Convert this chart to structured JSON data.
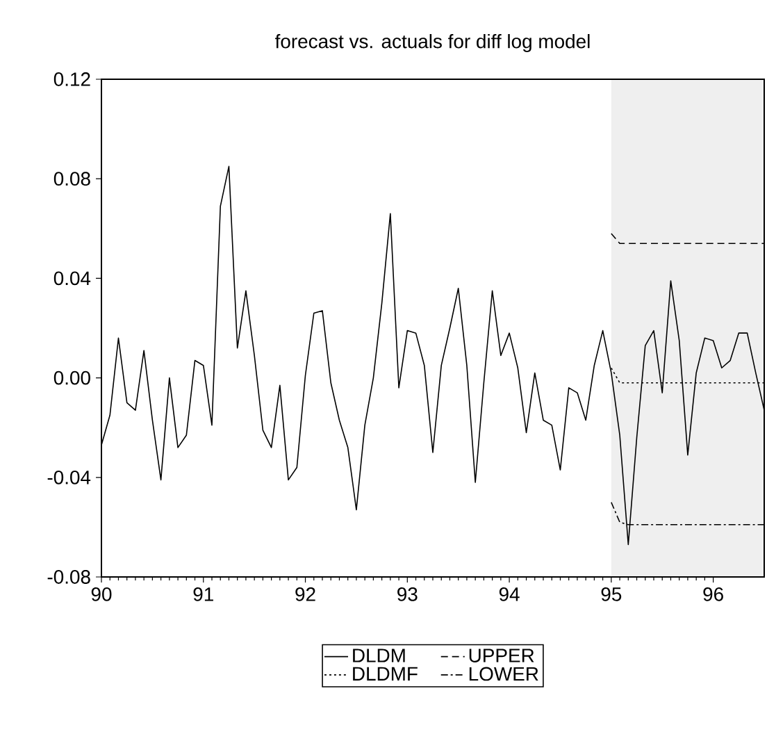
{
  "chart_data": {
    "type": "line",
    "title": "forecast vs. actuals for diff log model",
    "x": [
      90.0,
      90.0833,
      90.1667,
      90.25,
      90.3333,
      90.4167,
      90.5,
      90.5833,
      90.6667,
      90.75,
      90.8333,
      90.9167,
      91.0,
      91.0833,
      91.1667,
      91.25,
      91.3333,
      91.4167,
      91.5,
      91.5833,
      91.6667,
      91.75,
      91.8333,
      91.9167,
      92.0,
      92.0833,
      92.1667,
      92.25,
      92.3333,
      92.4167,
      92.5,
      92.5833,
      92.6667,
      92.75,
      92.8333,
      92.9167,
      93.0,
      93.0833,
      93.1667,
      93.25,
      93.3333,
      93.4167,
      93.5,
      93.5833,
      93.6667,
      93.75,
      93.8333,
      93.9167,
      94.0,
      94.0833,
      94.1667,
      94.25,
      94.3333,
      94.4167,
      94.5,
      94.5833,
      94.6667,
      94.75,
      94.8333,
      94.9167,
      95.0,
      95.0833,
      95.1667,
      95.25,
      95.3333,
      95.4167,
      95.5,
      95.5833,
      95.6667,
      95.75,
      95.8333,
      95.9167,
      96.0,
      96.0833,
      96.1667,
      96.25,
      96.3333,
      96.4167,
      96.5
    ],
    "series": [
      {
        "name": "DLDM",
        "color": "#000000",
        "line_style": "solid",
        "values": [
          -0.027,
          -0.015,
          0.016,
          -0.01,
          -0.013,
          0.011,
          -0.017,
          -0.041,
          0.0,
          -0.028,
          -0.023,
          0.007,
          0.005,
          -0.019,
          0.069,
          0.085,
          0.012,
          0.035,
          0.009,
          -0.021,
          -0.028,
          -0.003,
          -0.041,
          -0.036,
          0.001,
          0.026,
          0.027,
          -0.002,
          -0.017,
          -0.028,
          -0.053,
          -0.019,
          0.0,
          0.03,
          0.066,
          -0.004,
          0.019,
          0.018,
          0.005,
          -0.03,
          0.005,
          0.02,
          0.036,
          0.005,
          -0.042,
          -0.002,
          0.035,
          0.009,
          0.018,
          0.004,
          -0.022,
          0.002,
          -0.017,
          -0.019,
          -0.037,
          -0.004,
          -0.006,
          -0.017,
          0.005,
          0.019,
          0.002,
          -0.023,
          -0.067,
          -0.024,
          0.013,
          0.019,
          -0.006,
          0.039,
          0.015,
          -0.031,
          0.002,
          0.016,
          0.015,
          0.004,
          0.007,
          0.018,
          0.018,
          0.002,
          -0.013
        ]
      },
      {
        "name": "DLDMF",
        "color": "#000000",
        "line_style": "dotted",
        "values": [
          null,
          null,
          null,
          null,
          null,
          null,
          null,
          null,
          null,
          null,
          null,
          null,
          null,
          null,
          null,
          null,
          null,
          null,
          null,
          null,
          null,
          null,
          null,
          null,
          null,
          null,
          null,
          null,
          null,
          null,
          null,
          null,
          null,
          null,
          null,
          null,
          null,
          null,
          null,
          null,
          null,
          null,
          null,
          null,
          null,
          null,
          null,
          null,
          null,
          null,
          null,
          null,
          null,
          null,
          null,
          null,
          null,
          null,
          null,
          null,
          0.004,
          -0.002,
          -0.002,
          -0.002,
          -0.002,
          -0.002,
          -0.002,
          -0.002,
          -0.002,
          -0.002,
          -0.002,
          -0.002,
          -0.002,
          -0.002,
          -0.002,
          -0.002,
          -0.002,
          -0.002,
          -0.002
        ]
      },
      {
        "name": "UPPER",
        "color": "#000000",
        "line_style": "dashed",
        "values": [
          null,
          null,
          null,
          null,
          null,
          null,
          null,
          null,
          null,
          null,
          null,
          null,
          null,
          null,
          null,
          null,
          null,
          null,
          null,
          null,
          null,
          null,
          null,
          null,
          null,
          null,
          null,
          null,
          null,
          null,
          null,
          null,
          null,
          null,
          null,
          null,
          null,
          null,
          null,
          null,
          null,
          null,
          null,
          null,
          null,
          null,
          null,
          null,
          null,
          null,
          null,
          null,
          null,
          null,
          null,
          null,
          null,
          null,
          null,
          null,
          0.058,
          0.054,
          0.054,
          0.054,
          0.054,
          0.054,
          0.054,
          0.054,
          0.054,
          0.054,
          0.054,
          0.054,
          0.054,
          0.054,
          0.054,
          0.054,
          0.054,
          0.054,
          0.054
        ]
      },
      {
        "name": "LOWER",
        "color": "#000000",
        "line_style": "dashdot",
        "values": [
          null,
          null,
          null,
          null,
          null,
          null,
          null,
          null,
          null,
          null,
          null,
          null,
          null,
          null,
          null,
          null,
          null,
          null,
          null,
          null,
          null,
          null,
          null,
          null,
          null,
          null,
          null,
          null,
          null,
          null,
          null,
          null,
          null,
          null,
          null,
          null,
          null,
          null,
          null,
          null,
          null,
          null,
          null,
          null,
          null,
          null,
          null,
          null,
          null,
          null,
          null,
          null,
          null,
          null,
          null,
          null,
          null,
          null,
          null,
          null,
          -0.05,
          -0.058,
          -0.059,
          -0.059,
          -0.059,
          -0.059,
          -0.059,
          -0.059,
          -0.059,
          -0.059,
          -0.059,
          -0.059,
          -0.059,
          -0.059,
          -0.059,
          -0.059,
          -0.059,
          -0.059,
          -0.059
        ]
      }
    ],
    "xlim": [
      90,
      96.5
    ],
    "xticks": [
      90,
      91,
      92,
      93,
      94,
      95,
      96
    ],
    "ylim": [
      -0.08,
      0.12
    ],
    "yticks": [
      0.12,
      0.08,
      0.04,
      {
        "value": 0,
        "label": "0.00"
      },
      -0.04,
      -0.08
    ],
    "bands": [
      {
        "axis": "x",
        "from": 95,
        "to": 96.5,
        "color": "#efefef"
      }
    ],
    "legend": "bottom",
    "grid": false,
    "marker": "none"
  }
}
